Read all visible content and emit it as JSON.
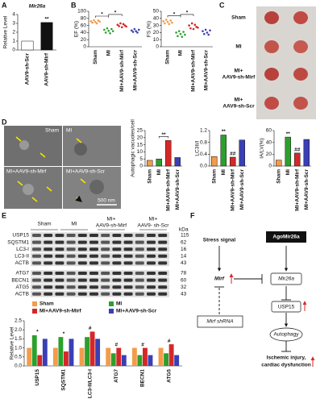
{
  "panel_labels": [
    "A",
    "B",
    "C",
    "D",
    "E",
    "F"
  ],
  "chart_data": [
    {
      "type": "bar",
      "title": "Mir26a",
      "ylabel": "Relative Level",
      "categories": [
        "AAV9-sh-Scr",
        "AAV9-sh-Mirf"
      ],
      "values": [
        1,
        3.1
      ],
      "colors": [
        "#ffffff",
        "#111111"
      ],
      "ylim": [
        0,
        4
      ],
      "yticks": [
        0,
        1,
        2,
        3,
        4
      ],
      "annotations": [
        null,
        "**"
      ]
    },
    {
      "type": "strip",
      "ylabel": "EF (%)",
      "categories": [
        "Sham",
        "MI",
        "MI+AAV9-sh-Mirf",
        "MI+AAV9-sh-Scr"
      ],
      "colors": [
        "#f39c4a",
        "#2ca02c",
        "#d62728",
        "#3a3fb5"
      ],
      "values": [
        [
          72,
          68,
          75,
          70,
          66,
          74,
          71
        ],
        [
          48,
          40,
          52,
          45,
          38,
          50,
          44
        ],
        [
          62,
          58,
          66,
          55,
          64,
          60,
          57
        ],
        [
          46,
          42,
          50,
          44,
          40,
          48
        ]
      ],
      "ylim": [
        0,
        100
      ],
      "yticks": [
        0,
        20,
        40,
        60,
        80,
        100
      ],
      "brackets": [
        {
          "from": 0,
          "to": 1,
          "label": "*"
        },
        {
          "from": 1,
          "to": 2,
          "label": "*"
        }
      ]
    },
    {
      "type": "strip",
      "ylabel": "FS (%)",
      "categories": [
        "Sham",
        "MI",
        "MI+AAV9-sh-Mirf",
        "MI+AAV9-sh-Scr"
      ],
      "colors": [
        "#f39c4a",
        "#2ca02c",
        "#d62728",
        "#3a3fb5"
      ],
      "values": [
        [
          36,
          33,
          38,
          35,
          32,
          37,
          34
        ],
        [
          20,
          15,
          22,
          18,
          14,
          21,
          17
        ],
        [
          30,
          26,
          33,
          25,
          31,
          28,
          27
        ],
        [
          22,
          18,
          24,
          20,
          17,
          23
        ]
      ],
      "ylim": [
        0,
        50
      ],
      "yticks": [
        0,
        10,
        20,
        30,
        40,
        50
      ],
      "brackets": [
        {
          "from": 0,
          "to": 1,
          "label": "*"
        },
        {
          "from": 1,
          "to": 2,
          "label": "*"
        }
      ]
    },
    {
      "type": "bar",
      "ylabel": "Autophagic vacuoles/cell",
      "categories": [
        "Sham",
        "MI",
        "MI+AAV9-sh-Mirf",
        "MI+AAV9-sh-Scr"
      ],
      "values": [
        4,
        5,
        18,
        6
      ],
      "colors": [
        "#f39c4a",
        "#2ca02c",
        "#d62728",
        "#3a3fb5"
      ],
      "ylim": [
        0,
        25
      ],
      "yticks": [
        0,
        5,
        10,
        15,
        20,
        25
      ],
      "brackets": [
        {
          "from": 1,
          "to": 2,
          "label": "**"
        }
      ]
    },
    {
      "type": "bar",
      "ylabel": "LC3II/I",
      "categories": [
        "Sham",
        "MI",
        "MI+AAV9-sh-Mirf",
        "MI+AAV9-sh-Scr"
      ],
      "values": [
        0.32,
        1.05,
        0.3,
        0.88
      ],
      "colors": [
        "#f39c4a",
        "#2ca02c",
        "#d62728",
        "#3a3fb5"
      ],
      "ylim": [
        0,
        1.2
      ],
      "yticks": [
        {
          "value": 0,
          "label": "0.0"
        },
        {
          "value": 0.4,
          "label": "0.4"
        },
        {
          "value": 0.8,
          "label": "0.8"
        },
        {
          "value": 1.2,
          "label": "1.2"
        }
      ],
      "annotations": [
        null,
        "**",
        "##",
        null
      ]
    },
    {
      "type": "bar",
      "ylabel": "IA/LV(%)",
      "categories": [
        "Sham",
        "MI",
        "MI+AAV9-sh-Mirf",
        "MI+AAV9-sh-Scr"
      ],
      "values": [
        10,
        49,
        22,
        45
      ],
      "colors": [
        "#f39c4a",
        "#2ca02c",
        "#d62728",
        "#3a3fb5"
      ],
      "ylim": [
        0,
        60
      ],
      "yticks": [
        0,
        20,
        40,
        60
      ],
      "annotations": [
        null,
        "**",
        "##",
        null
      ]
    },
    {
      "type": "grouped_bar",
      "ylabel": "Relative Level",
      "categories": [
        "USP15",
        "SQSTM1",
        "LC3-II/LC3-I",
        "ATG7",
        "BECN1",
        "ATG5"
      ],
      "series": [
        {
          "name": "Sham",
          "color": "#f39c4a",
          "values": [
            1,
            1,
            1,
            1,
            1,
            1
          ]
        },
        {
          "name": "MI",
          "color": "#2ca02c",
          "values": [
            1.7,
            1.6,
            1.6,
            0.7,
            0.6,
            0.7
          ]
        },
        {
          "name": "MI+AAV9-sh-Mirf",
          "color": "#d62728",
          "values": [
            0.6,
            0.8,
            1.9,
            1.0,
            1.0,
            1.2
          ]
        },
        {
          "name": "MI+AAV9-sh-Scr",
          "color": "#3a3fb5",
          "values": [
            1.5,
            1.5,
            1.5,
            0.6,
            0.6,
            0.6
          ]
        }
      ],
      "ylim": [
        0,
        2.5
      ],
      "yticks": [
        {
          "value": 0,
          "label": "0.0"
        },
        {
          "value": 0.5,
          "label": "0.5"
        },
        {
          "value": 1,
          "label": "1.0"
        },
        {
          "value": 1.5,
          "label": "1.5"
        },
        {
          "value": 2,
          "label": "2.0"
        },
        {
          "value": 2.5,
          "label": "2.5"
        }
      ],
      "annotations": [
        "*",
        "*",
        "#",
        "#",
        "#",
        "#"
      ]
    }
  ],
  "heart_photos": {
    "labels": [
      "Sham",
      "MI",
      "MI+",
      "AAV9-sh-Mirf",
      "MI+",
      "AAV9-sh-Scr"
    ]
  },
  "em_images": {
    "labels": [
      "Sham",
      "MI",
      "MI+AAV9-sh-Mirf",
      "MI+AAV9-sh-Scr"
    ],
    "scale_bar": "500 nm"
  },
  "blot": {
    "groups": [
      "Sham",
      "MI",
      "MI+",
      "AAV9-sh-Mirf",
      "MI+",
      "AAV9- sh-Scr"
    ],
    "proteins": [
      "USP15",
      "SQSTM1",
      "LC3-I",
      "LC3-II",
      "ACTB",
      "ATG7",
      "BECN1",
      "ATG5",
      "ACTB"
    ],
    "kda": [
      "115",
      "62",
      "16",
      "14",
      "43",
      "78",
      "60",
      "32",
      "43"
    ],
    "unit": "kDa"
  },
  "diagram": {
    "nodes": [
      "Stress signal",
      "Mirf",
      "Mirf shRNA",
      "AgoMir26a",
      "Mir26a",
      "USP15",
      "Autophagy",
      "Ischemic injury,",
      "cardiac dysfunction"
    ]
  }
}
